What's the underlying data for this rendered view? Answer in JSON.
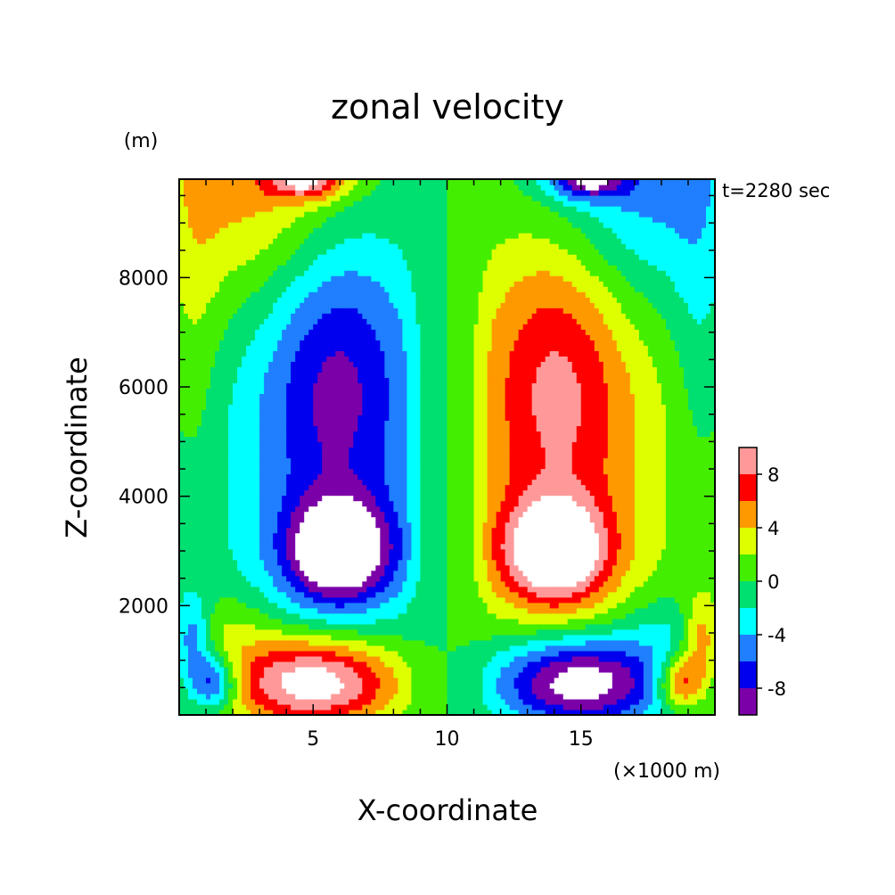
{
  "chart_data": {
    "type": "heatmap",
    "title": "zonal velocity",
    "y_unit": "(m)",
    "x_unit": "(×1000 m)",
    "xlabel": "X-coordinate",
    "ylabel": "Z-coordinate",
    "time_label": "t=2280 sec",
    "xlim": [
      0,
      20
    ],
    "ylim": [
      0,
      9800
    ],
    "x_ticks": [
      5,
      10,
      15
    ],
    "x_tick_labels": [
      "5",
      "10",
      "15"
    ],
    "y_ticks": [
      2000,
      4000,
      6000,
      8000
    ],
    "y_tick_labels": [
      "2000",
      "4000",
      "6000",
      "8000"
    ],
    "colorbar": {
      "levels": [
        -10,
        -8,
        -6,
        -4,
        -2,
        0,
        2,
        4,
        6,
        8,
        10
      ],
      "colors": [
        "#7b00a8",
        "#0000ee",
        "#1f7fff",
        "#00ffff",
        "#00e070",
        "#44ee00",
        "#ddff00",
        "#ff9900",
        "#ff0000",
        "#ff9999"
      ],
      "tick_labels": [
        "-8",
        "-4",
        "0",
        "4",
        "8"
      ],
      "tick_values": [
        -8,
        -4,
        0,
        4,
        8
      ]
    },
    "features": [
      {
        "x": 6.0,
        "z": 3000,
        "value": -11
      },
      {
        "x": 14.0,
        "z": 3000,
        "value": 11
      },
      {
        "x": 5.9,
        "z": 6900,
        "value": -8
      },
      {
        "x": 14.1,
        "z": 6900,
        "value": 8
      },
      {
        "x": 5.0,
        "z": 400,
        "value": 11
      },
      {
        "x": 15.0,
        "z": 400,
        "value": -11
      },
      {
        "x": 10.0,
        "z": 5000,
        "value": 0
      }
    ]
  }
}
